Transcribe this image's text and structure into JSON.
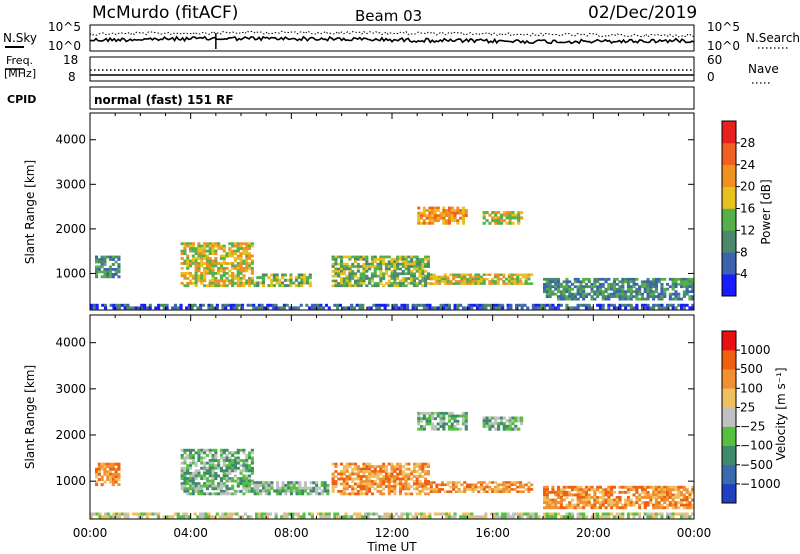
{
  "header": {
    "site": "McMurdo (fitACF)",
    "beam": "Beam 03",
    "date": "02/Dec/2019"
  },
  "noise_panel": {
    "left_label": "N.Sky",
    "right_label": "N.Search",
    "left_ticks": [
      "10^5",
      "10^0"
    ],
    "right_ticks": [
      "10^5",
      "10^0"
    ]
  },
  "freq_panel": {
    "left_label_top": "Freq.",
    "left_label_unit": "[MHz]",
    "left_ticks": [
      "18",
      "8"
    ],
    "right_label": "Nave",
    "right_ticks": [
      "60",
      "0"
    ],
    "cpid_label": "CPID",
    "cpid_value": "normal (fast) 151 RF"
  },
  "chart_data": [
    {
      "type": "heatmap",
      "name": "power",
      "ylabel": "Slant Range [km]",
      "xlabel": "",
      "ylim": [
        180,
        4600
      ],
      "y_ticks": [
        "1000",
        "2000",
        "3000",
        "4000"
      ],
      "colorbar": {
        "label": "Power [dB]",
        "ticks": [
          "4",
          "8",
          "12",
          "16",
          "20",
          "24",
          "28"
        ],
        "colors": [
          "#1a1aff",
          "#3d63b0",
          "#4a8a6a",
          "#55b04a",
          "#e8c020",
          "#f09020",
          "#f06020",
          "#e82020"
        ]
      },
      "echo_bands": [
        {
          "t_start": 0.2,
          "t_end": 1.2,
          "r_low": 900,
          "r_high": 1400,
          "level": 2
        },
        {
          "t_start": 3.6,
          "t_end": 6.5,
          "r_low": 700,
          "r_high": 1700,
          "level": 4
        },
        {
          "t_start": 6.5,
          "t_end": 8.8,
          "r_low": 700,
          "r_high": 1000,
          "level": 3
        },
        {
          "t_start": 9.6,
          "t_end": 13.5,
          "r_low": 700,
          "r_high": 1400,
          "level": 3
        },
        {
          "t_start": 13.5,
          "t_end": 17.6,
          "r_low": 750,
          "r_high": 1000,
          "level": 4
        },
        {
          "t_start": 13.0,
          "t_end": 15.0,
          "r_low": 2100,
          "r_high": 2500,
          "level": 5
        },
        {
          "t_start": 15.6,
          "t_end": 17.2,
          "r_low": 2100,
          "r_high": 2400,
          "level": 4
        },
        {
          "t_start": 18.0,
          "t_end": 24.0,
          "r_low": 400,
          "r_high": 900,
          "level": 2
        },
        {
          "t_start": 0.0,
          "t_end": 24.0,
          "r_low": 200,
          "r_high": 320,
          "level": 1
        }
      ]
    },
    {
      "type": "heatmap",
      "name": "velocity",
      "ylabel": "Slant Range [km]",
      "xlabel": "Time UT",
      "ylim": [
        180,
        4600
      ],
      "y_ticks": [
        "1000",
        "2000",
        "3000",
        "4000"
      ],
      "x_ticks": [
        "00:00",
        "04:00",
        "08:00",
        "12:00",
        "16:00",
        "20:00",
        "00:00"
      ],
      "colorbar": {
        "label": "Velocity [m s⁻¹]",
        "ticks": [
          "1000",
          "500",
          "100",
          "25",
          "−25",
          "−100",
          "−500",
          "−1000"
        ],
        "colors": [
          "#2040c0",
          "#3a6ab0",
          "#3f8a6a",
          "#55c040",
          "#c0c0c0",
          "#f0c060",
          "#f09030",
          "#f06010",
          "#e81010"
        ]
      },
      "echo_bands": [
        {
          "t_start": 0.2,
          "t_end": 1.2,
          "r_low": 900,
          "r_high": 1400,
          "level": 6
        },
        {
          "t_start": 3.6,
          "t_end": 6.5,
          "r_low": 700,
          "r_high": 1700,
          "level": 3
        },
        {
          "t_start": 6.5,
          "t_end": 9.5,
          "r_low": 700,
          "r_high": 1000,
          "level": 3
        },
        {
          "t_start": 9.6,
          "t_end": 13.5,
          "r_low": 700,
          "r_high": 1400,
          "level": 6
        },
        {
          "t_start": 13.5,
          "t_end": 17.6,
          "r_low": 750,
          "r_high": 1000,
          "level": 6
        },
        {
          "t_start": 13.0,
          "t_end": 15.0,
          "r_low": 2100,
          "r_high": 2500,
          "level": 3
        },
        {
          "t_start": 15.6,
          "t_end": 17.2,
          "r_low": 2100,
          "r_high": 2400,
          "level": 3
        },
        {
          "t_start": 18.0,
          "t_end": 24.0,
          "r_low": 400,
          "r_high": 900,
          "level": 6
        },
        {
          "t_start": 0.0,
          "t_end": 24.0,
          "r_low": 200,
          "r_high": 320,
          "level": 4
        }
      ]
    }
  ]
}
